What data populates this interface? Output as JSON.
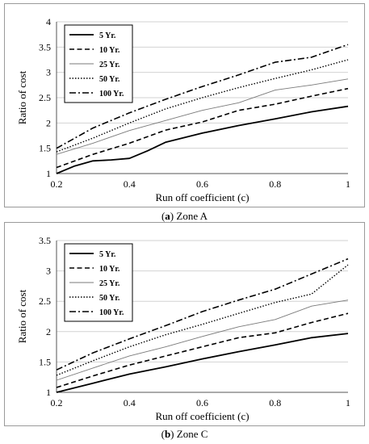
{
  "captions": [
    {
      "tag": "a",
      "title": "Zone A"
    },
    {
      "tag": "b",
      "title": "Zone C"
    }
  ],
  "chart_data": [
    {
      "type": "line",
      "xlabel": "Run off coefficient  (c)",
      "ylabel": "Ratio of cost",
      "xlim": [
        0.2,
        1
      ],
      "ylim": [
        1,
        4
      ],
      "xticks": [
        "0.2",
        "0.4",
        "0.6",
        "0.8",
        "1"
      ],
      "yticks": [
        "1",
        "1.5",
        "2",
        "2.5",
        "3",
        "3.5",
        "4"
      ],
      "grid": "horizontal",
      "legend_position": "top-left",
      "series": [
        {
          "name": "5 Yr.",
          "style": "solid-thick",
          "points": [
            [
              0.2,
              1.0
            ],
            [
              0.25,
              1.15
            ],
            [
              0.3,
              1.25
            ],
            [
              0.35,
              1.27
            ],
            [
              0.4,
              1.3
            ],
            [
              0.45,
              1.45
            ],
            [
              0.5,
              1.62
            ],
            [
              0.6,
              1.8
            ],
            [
              0.7,
              1.95
            ],
            [
              0.8,
              2.08
            ],
            [
              0.9,
              2.22
            ],
            [
              1.0,
              2.33
            ]
          ]
        },
        {
          "name": "10 Yr.",
          "style": "dashed",
          "points": [
            [
              0.2,
              1.12
            ],
            [
              0.3,
              1.38
            ],
            [
              0.4,
              1.6
            ],
            [
              0.5,
              1.86
            ],
            [
              0.6,
              2.02
            ],
            [
              0.7,
              2.25
            ],
            [
              0.8,
              2.37
            ],
            [
              0.9,
              2.53
            ],
            [
              1.0,
              2.68
            ]
          ]
        },
        {
          "name": "25 Yr.",
          "style": "solid-thin",
          "points": [
            [
              0.2,
              1.38
            ],
            [
              0.3,
              1.6
            ],
            [
              0.4,
              1.85
            ],
            [
              0.5,
              2.05
            ],
            [
              0.6,
              2.25
            ],
            [
              0.7,
              2.4
            ],
            [
              0.8,
              2.65
            ],
            [
              0.9,
              2.75
            ],
            [
              1.0,
              2.87
            ]
          ]
        },
        {
          "name": "50 Yr.",
          "style": "dotted",
          "points": [
            [
              0.2,
              1.43
            ],
            [
              0.3,
              1.7
            ],
            [
              0.4,
              2.0
            ],
            [
              0.5,
              2.28
            ],
            [
              0.6,
              2.5
            ],
            [
              0.7,
              2.7
            ],
            [
              0.8,
              2.88
            ],
            [
              0.9,
              3.05
            ],
            [
              1.0,
              3.25
            ]
          ]
        },
        {
          "name": "100 Yr.",
          "style": "dash-dot",
          "points": [
            [
              0.2,
              1.5
            ],
            [
              0.3,
              1.9
            ],
            [
              0.4,
              2.2
            ],
            [
              0.5,
              2.47
            ],
            [
              0.6,
              2.72
            ],
            [
              0.7,
              2.95
            ],
            [
              0.8,
              3.2
            ],
            [
              0.9,
              3.3
            ],
            [
              1.0,
              3.55
            ]
          ]
        }
      ]
    },
    {
      "type": "line",
      "xlabel": "Run off coefficient  (c)",
      "ylabel": "Ratio of cost",
      "xlim": [
        0.2,
        1
      ],
      "ylim": [
        1,
        3.5
      ],
      "xticks": [
        "0.2",
        "0.4",
        "0.6",
        "0.8",
        "1"
      ],
      "yticks": [
        "1",
        "1.5",
        "2",
        "2.5",
        "3",
        "3.5"
      ],
      "grid": "horizontal",
      "legend_position": "top-left",
      "series": [
        {
          "name": "5 Yr.",
          "style": "solid-thick",
          "points": [
            [
              0.2,
              1.0
            ],
            [
              0.3,
              1.15
            ],
            [
              0.4,
              1.3
            ],
            [
              0.5,
              1.42
            ],
            [
              0.6,
              1.55
            ],
            [
              0.7,
              1.67
            ],
            [
              0.8,
              1.78
            ],
            [
              0.9,
              1.9
            ],
            [
              1.0,
              1.97
            ]
          ]
        },
        {
          "name": "10 Yr.",
          "style": "dashed",
          "points": [
            [
              0.2,
              1.08
            ],
            [
              0.3,
              1.27
            ],
            [
              0.4,
              1.45
            ],
            [
              0.5,
              1.6
            ],
            [
              0.6,
              1.75
            ],
            [
              0.7,
              1.9
            ],
            [
              0.8,
              1.98
            ],
            [
              0.9,
              2.15
            ],
            [
              1.0,
              2.3
            ]
          ]
        },
        {
          "name": "25 Yr.",
          "style": "solid-thin",
          "points": [
            [
              0.2,
              1.2
            ],
            [
              0.3,
              1.4
            ],
            [
              0.4,
              1.6
            ],
            [
              0.5,
              1.75
            ],
            [
              0.6,
              1.92
            ],
            [
              0.7,
              2.08
            ],
            [
              0.8,
              2.2
            ],
            [
              0.9,
              2.42
            ],
            [
              1.0,
              2.52
            ]
          ]
        },
        {
          "name": "50 Yr.",
          "style": "dotted",
          "points": [
            [
              0.2,
              1.28
            ],
            [
              0.3,
              1.52
            ],
            [
              0.4,
              1.75
            ],
            [
              0.5,
              1.95
            ],
            [
              0.6,
              2.12
            ],
            [
              0.7,
              2.3
            ],
            [
              0.8,
              2.48
            ],
            [
              0.9,
              2.62
            ],
            [
              1.0,
              3.1
            ]
          ]
        },
        {
          "name": "100 Yr.",
          "style": "dash-dot",
          "points": [
            [
              0.2,
              1.37
            ],
            [
              0.3,
              1.65
            ],
            [
              0.4,
              1.88
            ],
            [
              0.5,
              2.1
            ],
            [
              0.6,
              2.33
            ],
            [
              0.7,
              2.52
            ],
            [
              0.8,
              2.7
            ],
            [
              0.9,
              2.95
            ],
            [
              1.0,
              3.2
            ]
          ]
        }
      ]
    }
  ]
}
